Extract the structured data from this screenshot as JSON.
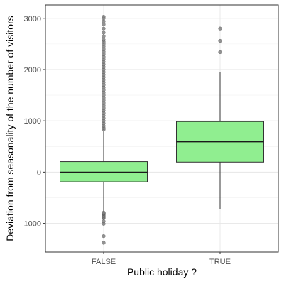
{
  "chart_data": {
    "type": "boxplot",
    "xlabel": "Public holiday ?",
    "ylabel": "Deviation from seasonality of the number of visitors",
    "categories": [
      "FALSE",
      "TRUE"
    ],
    "ylim": [
      -1560,
      3260
    ],
    "yticks": [
      -1000,
      0,
      1000,
      2000,
      3000
    ],
    "grid": true,
    "box_fill": "#90ee90",
    "box_stroke": "#333333",
    "outlier_color": "#808080",
    "boxes": [
      {
        "category": "FALSE",
        "whisker_low": -775,
        "q1": -190,
        "median": -5,
        "q3": 205,
        "whisker_high": 810,
        "outliers": [
          -1380,
          -1250,
          -1010,
          -960,
          -900,
          -880,
          -860,
          -840,
          -820,
          -810,
          -800,
          -790,
          830,
          860,
          900,
          950,
          1000,
          1050,
          1100,
          1150,
          1200,
          1250,
          1300,
          1350,
          1400,
          1450,
          1500,
          1550,
          1600,
          1650,
          1700,
          1750,
          1800,
          1850,
          1900,
          1950,
          2000,
          2050,
          2100,
          2150,
          2200,
          2250,
          2300,
          2350,
          2400,
          2450,
          2500,
          2540,
          2580,
          2650,
          2720,
          2800,
          2880,
          2940,
          3000,
          3030
        ]
      },
      {
        "category": "TRUE",
        "whisker_low": -715,
        "q1": 195,
        "median": 595,
        "q3": 985,
        "whisker_high": 1950,
        "outliers": [
          2340,
          2560,
          2800
        ]
      }
    ]
  }
}
